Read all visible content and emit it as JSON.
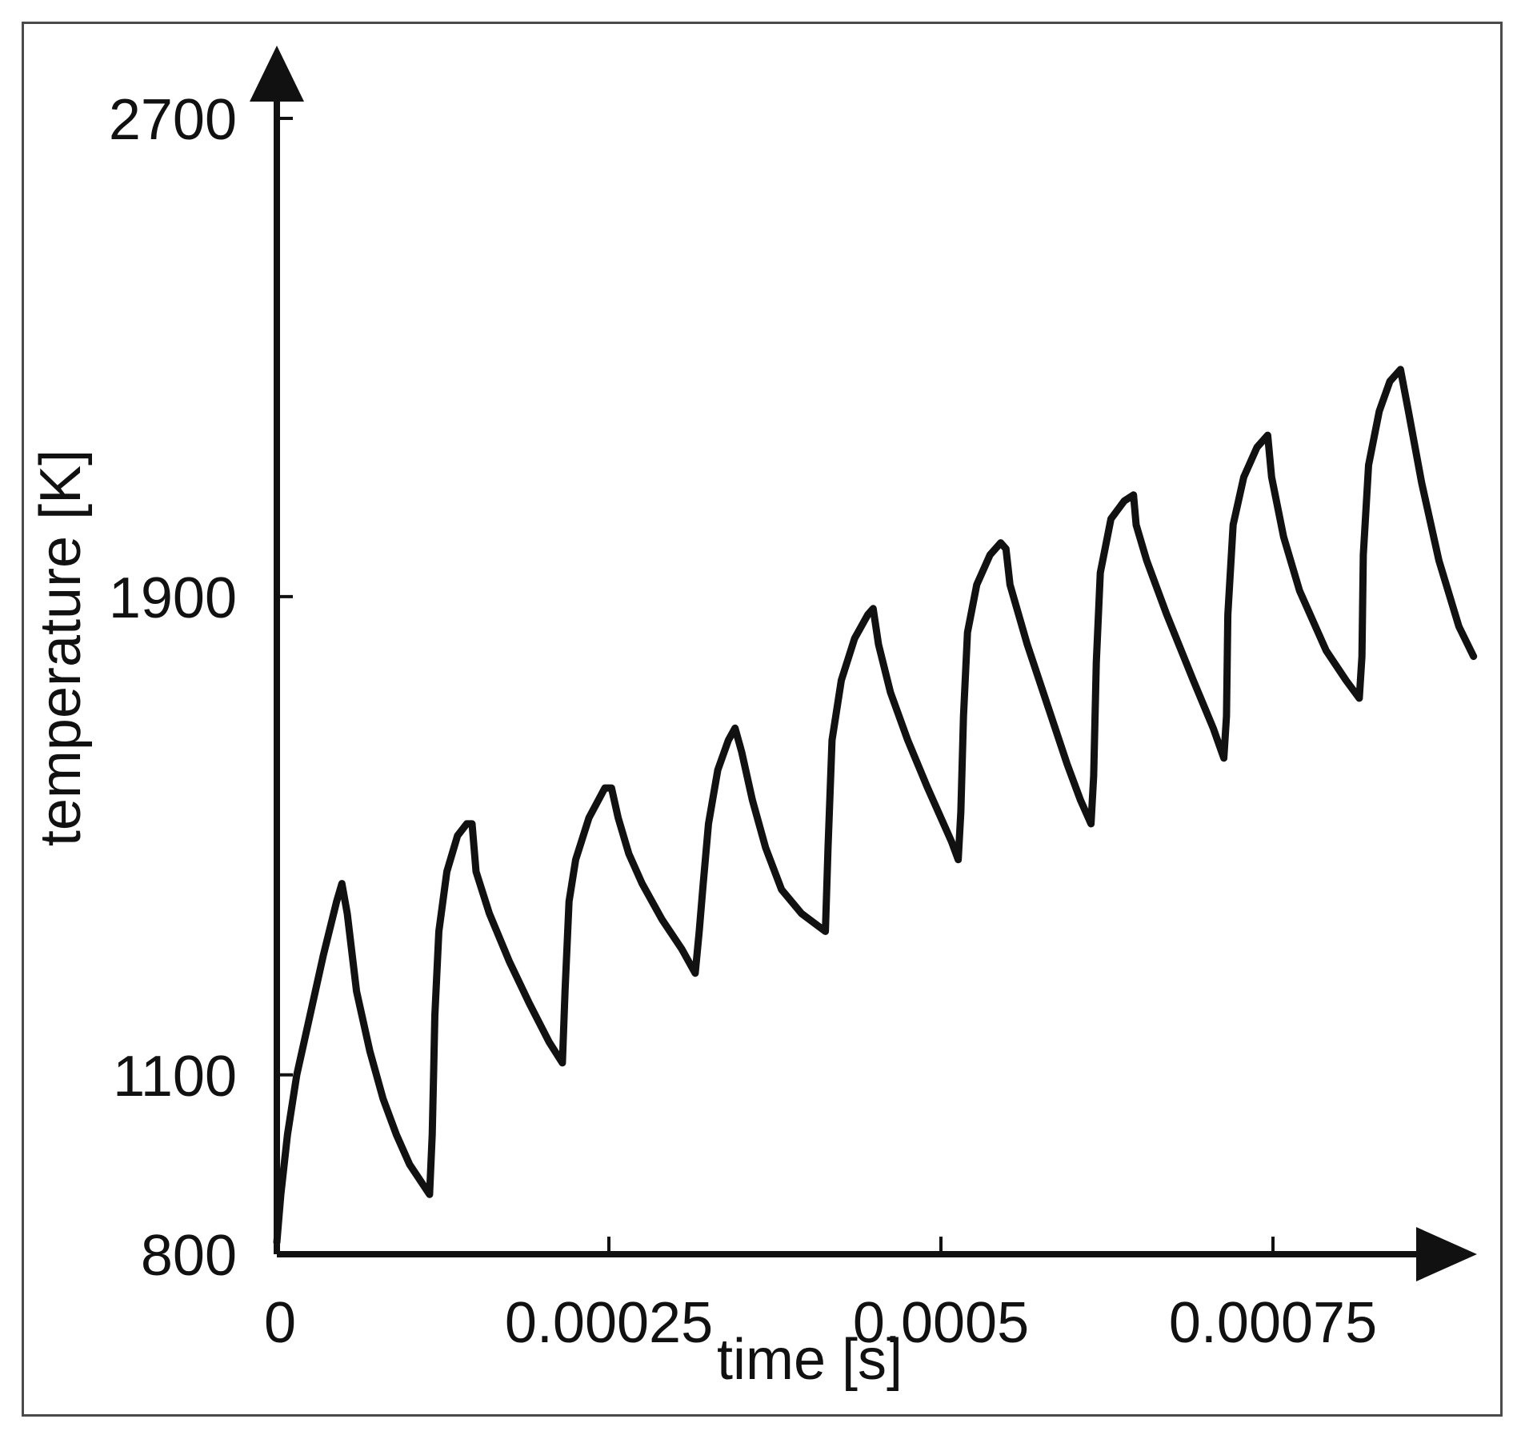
{
  "chart_data": {
    "type": "line",
    "title": "",
    "xlabel": "time [s]",
    "ylabel": "temperature [K]",
    "xlim": [
      0,
      0.00091
    ],
    "ylim": [
      800,
      2700
    ],
    "grid": false,
    "x_ticks": [
      {
        "value": 0,
        "label": "0"
      },
      {
        "value": 0.00025,
        "label": "0.00025"
      },
      {
        "value": 0.0005,
        "label": "0.0005"
      },
      {
        "value": 0.00075,
        "label": "0.00075"
      }
    ],
    "y_ticks": [
      {
        "value": 800,
        "label": "800"
      },
      {
        "value": 1100,
        "label": "1100"
      },
      {
        "value": 1900,
        "label": "1900"
      },
      {
        "value": 2700,
        "label": "2700"
      }
    ],
    "color": "#111111",
    "series": [
      {
        "points": [
          [
            0.0,
            820
          ],
          [
            3e-06,
            900
          ],
          [
            8e-06,
            1000
          ],
          [
            1.5e-05,
            1100
          ],
          [
            2.5e-05,
            1200
          ],
          [
            3.5e-05,
            1300
          ],
          [
            4.5e-05,
            1390
          ],
          [
            4.9e-05,
            1420
          ],
          [
            5.3e-05,
            1370
          ],
          [
            6e-05,
            1240
          ],
          [
            7e-05,
            1140
          ],
          [
            8e-05,
            1060
          ],
          [
            9e-05,
            1000
          ],
          [
            0.0001,
            950
          ],
          [
            0.000115,
            900
          ],
          [
            0.000117,
            1000
          ],
          [
            0.000118,
            1100
          ],
          [
            0.000119,
            1200
          ],
          [
            0.000122,
            1340
          ],
          [
            0.000128,
            1440
          ],
          [
            0.000136,
            1500
          ],
          [
            0.000143,
            1520
          ],
          [
            0.000147,
            1520
          ],
          [
            0.00015,
            1440
          ],
          [
            0.00016,
            1370
          ],
          [
            0.000175,
            1290
          ],
          [
            0.00019,
            1220
          ],
          [
            0.000205,
            1155
          ],
          [
            0.000215,
            1120
          ],
          [
            0.000217,
            1240
          ],
          [
            0.00022,
            1390
          ],
          [
            0.000225,
            1460
          ],
          [
            0.000235,
            1530
          ],
          [
            0.000247,
            1580
          ],
          [
            0.000252,
            1580
          ],
          [
            0.000257,
            1530
          ],
          [
            0.000265,
            1470
          ],
          [
            0.000275,
            1420
          ],
          [
            0.00029,
            1360
          ],
          [
            0.000305,
            1310
          ],
          [
            0.000315,
            1270
          ],
          [
            0.000318,
            1340
          ],
          [
            0.000321,
            1420
          ],
          [
            0.000325,
            1520
          ],
          [
            0.000332,
            1610
          ],
          [
            0.00034,
            1660
          ],
          [
            0.000345,
            1680
          ],
          [
            0.00035,
            1640
          ],
          [
            0.000358,
            1560
          ],
          [
            0.000368,
            1480
          ],
          [
            0.00038,
            1410
          ],
          [
            0.000395,
            1370
          ],
          [
            0.000413,
            1340
          ],
          [
            0.000415,
            1480
          ],
          [
            0.000418,
            1660
          ],
          [
            0.000425,
            1760
          ],
          [
            0.000435,
            1830
          ],
          [
            0.000445,
            1870
          ],
          [
            0.000449,
            1880
          ],
          [
            0.000453,
            1820
          ],
          [
            0.000462,
            1740
          ],
          [
            0.000475,
            1660
          ],
          [
            0.00049,
            1580
          ],
          [
            0.0005,
            1530
          ],
          [
            0.000508,
            1490
          ],
          [
            0.000513,
            1460
          ],
          [
            0.000515,
            1540
          ],
          [
            0.000517,
            1700
          ],
          [
            0.00052,
            1840
          ],
          [
            0.000527,
            1920
          ],
          [
            0.000537,
            1970
          ],
          [
            0.000545,
            1990
          ],
          [
            0.000549,
            1980
          ],
          [
            0.000552,
            1920
          ],
          [
            0.000565,
            1820
          ],
          [
            0.00058,
            1720
          ],
          [
            0.000595,
            1620
          ],
          [
            0.000605,
            1560
          ],
          [
            0.000613,
            1520
          ],
          [
            0.000615,
            1600
          ],
          [
            0.000617,
            1790
          ],
          [
            0.00062,
            1940
          ],
          [
            0.000628,
            2030
          ],
          [
            0.000638,
            2060
          ],
          [
            0.000645,
            2070
          ],
          [
            0.000647,
            2020
          ],
          [
            0.000655,
            1960
          ],
          [
            0.00067,
            1870
          ],
          [
            0.00069,
            1760
          ],
          [
            0.000705,
            1680
          ],
          [
            0.000713,
            1630
          ],
          [
            0.000715,
            1700
          ],
          [
            0.000716,
            1870
          ],
          [
            0.00072,
            2020
          ],
          [
            0.000728,
            2100
          ],
          [
            0.000738,
            2150
          ],
          [
            0.000746,
            2170
          ],
          [
            0.000749,
            2100
          ],
          [
            0.000758,
            2000
          ],
          [
            0.00077,
            1910
          ],
          [
            0.00079,
            1810
          ],
          [
            0.000805,
            1760
          ],
          [
            0.000815,
            1730
          ],
          [
            0.000817,
            1800
          ],
          [
            0.000818,
            1970
          ],
          [
            0.000822,
            2120
          ],
          [
            0.00083,
            2210
          ],
          [
            0.000838,
            2260
          ],
          [
            0.000846,
            2280
          ],
          [
            0.000852,
            2210
          ],
          [
            0.000862,
            2090
          ],
          [
            0.000875,
            1960
          ],
          [
            0.00089,
            1850
          ],
          [
            0.000901,
            1800
          ]
        ]
      }
    ]
  }
}
